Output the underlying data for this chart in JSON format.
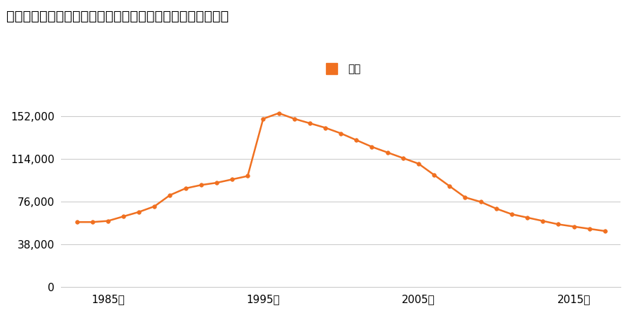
{
  "title": "岐阜県本巣郡北方町大字北方字駒来町１４９６番の地価推移",
  "legend_label": "価格",
  "line_color": "#f07020",
  "marker_color": "#f07020",
  "bg_color": "#ffffff",
  "years": [
    1983,
    1984,
    1985,
    1986,
    1987,
    1988,
    1989,
    1990,
    1991,
    1992,
    1993,
    1994,
    1995,
    1996,
    1997,
    1998,
    1999,
    2000,
    2001,
    2002,
    2003,
    2004,
    2005,
    2006,
    2007,
    2008,
    2009,
    2010,
    2011,
    2012,
    2013,
    2014,
    2015,
    2016,
    2017
  ],
  "values": [
    58000,
    58000,
    59000,
    63000,
    67000,
    72000,
    82000,
    88000,
    91000,
    93000,
    96000,
    99000,
    150000,
    155000,
    150000,
    146000,
    142000,
    137000,
    131000,
    125000,
    120000,
    115000,
    110000,
    100000,
    90000,
    80000,
    76000,
    70000,
    65000,
    62000,
    59000,
    56000,
    54000,
    52000,
    50000
  ],
  "yticks": [
    0,
    38000,
    76000,
    114000,
    152000
  ],
  "xtick_years": [
    1985,
    1995,
    2005,
    2015
  ],
  "ylim": [
    0,
    170000
  ],
  "xlim": [
    1982,
    2018
  ]
}
